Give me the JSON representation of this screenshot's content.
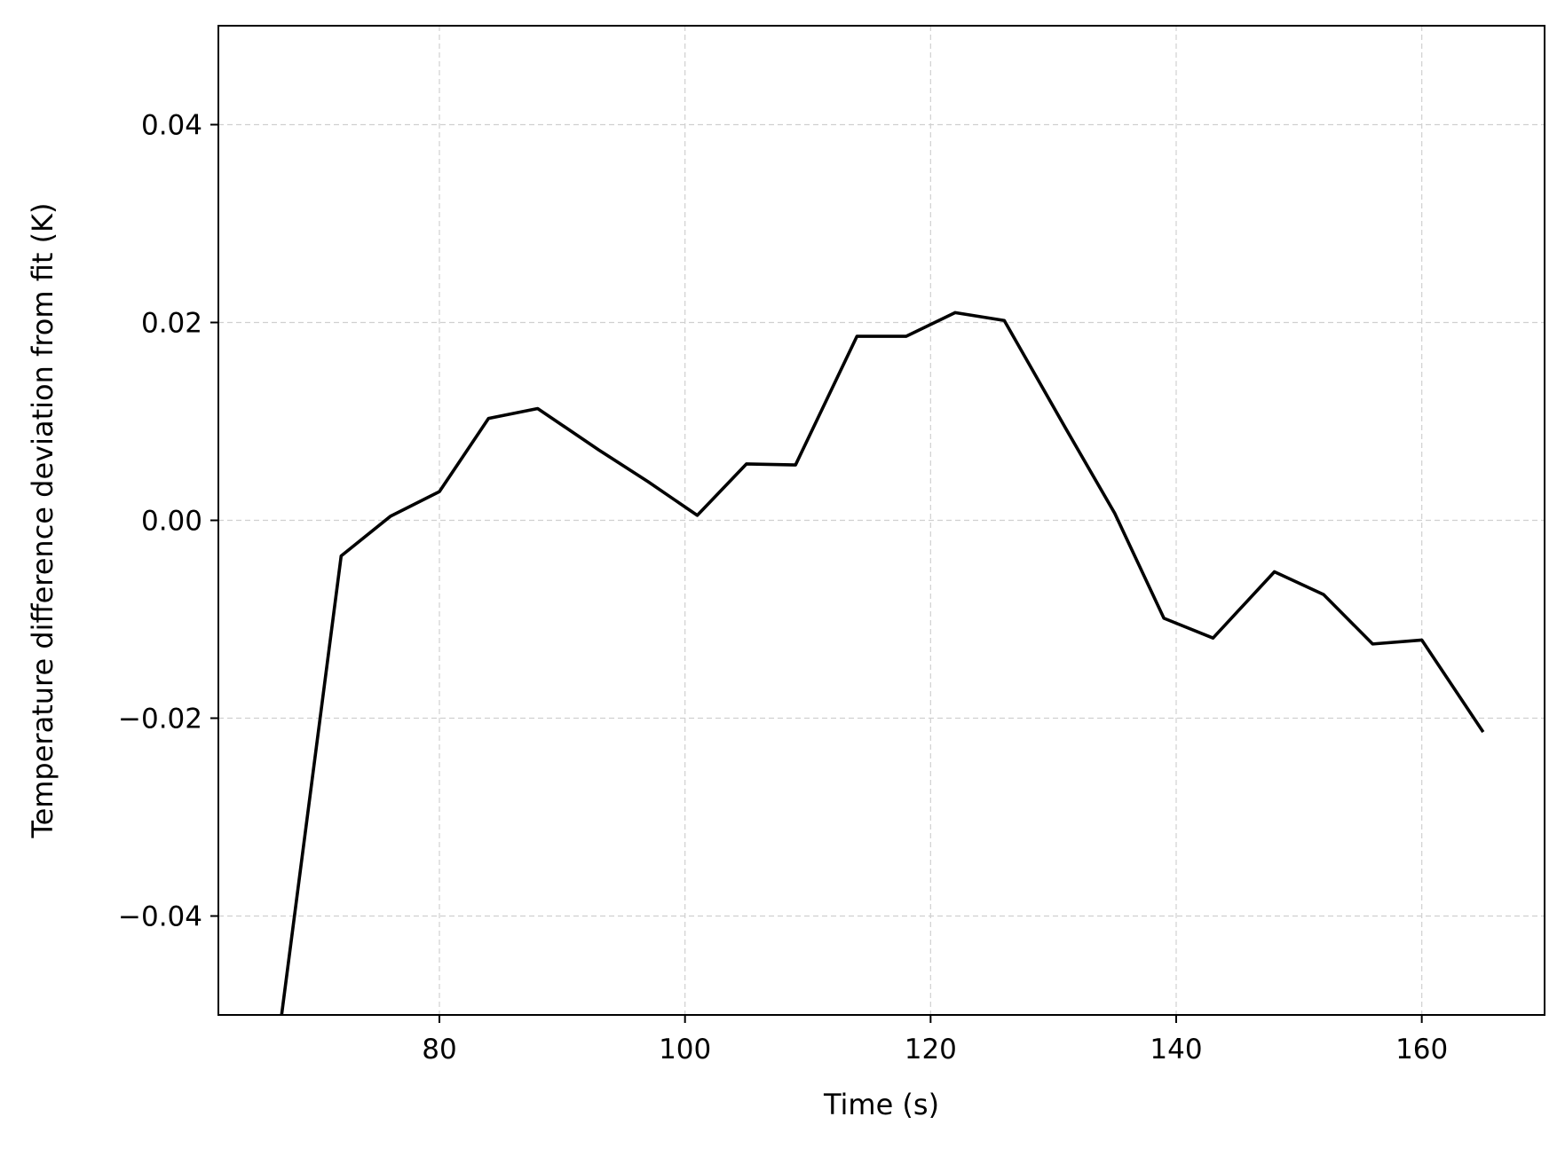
{
  "chart_data": {
    "type": "line",
    "title": "",
    "xlabel": "Time (s)",
    "ylabel": "Temperature difference deviation from fit (K)",
    "xlim": [
      62,
      170
    ],
    "ylim": [
      -0.05,
      0.05
    ],
    "x_ticks": [
      80,
      100,
      120,
      140,
      160
    ],
    "x_tick_labels": [
      "80",
      "100",
      "120",
      "140",
      "160"
    ],
    "y_ticks": [
      -0.04,
      -0.02,
      0.0,
      0.02,
      0.04
    ],
    "y_tick_labels": [
      "−0.04",
      "−0.02",
      "0.00",
      "0.02",
      "0.04"
    ],
    "grid": true,
    "series": [
      {
        "color": "#000000",
        "x": [
          66,
          72,
          76,
          80,
          84,
          88,
          93,
          97,
          101,
          105,
          109,
          114,
          118,
          122,
          126,
          131,
          135,
          139,
          143,
          148,
          152,
          156,
          160,
          165
        ],
        "y": [
          -0.061,
          -0.0036,
          0.0004,
          0.0029,
          0.0103,
          0.0113,
          0.0071,
          0.0039,
          0.0005,
          0.0057,
          0.0056,
          0.0186,
          0.0186,
          0.021,
          0.0202,
          0.0093,
          0.0007,
          -0.0099,
          -0.0119,
          -0.0052,
          -0.0075,
          -0.0125,
          -0.0121,
          -0.0214
        ]
      }
    ]
  }
}
